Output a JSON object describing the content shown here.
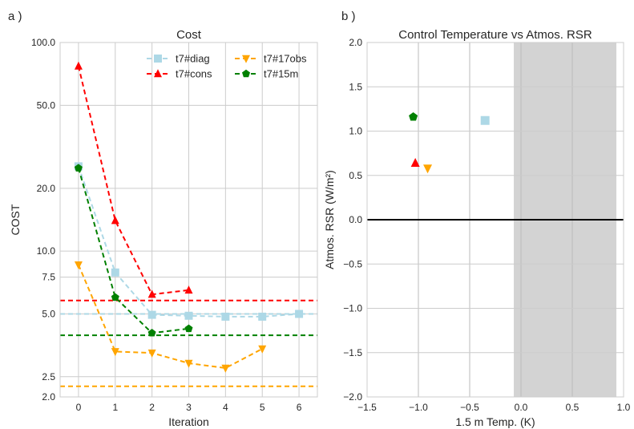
{
  "panels": {
    "a_label": "a )",
    "b_label": "b )"
  },
  "chart_data": [
    {
      "type": "line",
      "title": "Cost",
      "xlabel": "Iteration",
      "ylabel": "COST",
      "yscale": "log",
      "xlim": [
        -0.5,
        6.5
      ],
      "ylim": [
        2.0,
        100.0
      ],
      "xticks": [
        0,
        1,
        2,
        3,
        4,
        5,
        6
      ],
      "xtick_labels": [
        "0",
        "1",
        "2",
        "3",
        "4",
        "5",
        "6"
      ],
      "yticks": [
        2.0,
        2.5,
        5.0,
        7.5,
        10.0,
        20.0,
        50.0,
        100.0
      ],
      "ytick_labels": [
        "2.0",
        "2.5",
        "5.0",
        "7.5",
        "10.0",
        "20.0",
        "50.0",
        "100.0"
      ],
      "grid": true,
      "legend_position": "top-right",
      "series": [
        {
          "name": "t7#diag",
          "color": "#add8e6",
          "marker": "square",
          "x": [
            0,
            1,
            2,
            3,
            4,
            5,
            6
          ],
          "y": [
            25.5,
            7.9,
            4.95,
            4.9,
            4.85,
            4.85,
            5.0
          ],
          "hline": 5.0
        },
        {
          "name": "t7#cons",
          "color": "#ff0000",
          "marker": "triangle-up",
          "x": [
            0,
            1,
            2,
            3
          ],
          "y": [
            77,
            14,
            6.2,
            6.5
          ],
          "hline": 5.8
        },
        {
          "name": "t7#17obs",
          "color": "#ffa500",
          "marker": "triangle-down",
          "x": [
            0,
            1,
            2,
            3,
            4,
            5
          ],
          "y": [
            8.6,
            3.3,
            3.25,
            2.9,
            2.75,
            3.4
          ],
          "hline": 2.25
        },
        {
          "name": "t7#15m",
          "color": "#008000",
          "marker": "pentagon",
          "x": [
            0,
            1,
            2,
            3
          ],
          "y": [
            25,
            6.0,
            4.05,
            4.25
          ],
          "hline": 3.95
        }
      ]
    },
    {
      "type": "scatter",
      "title": "Control Temperature vs Atmos. RSR",
      "xlabel": "1.5 m Temp. (K)",
      "ylabel": "Atmos. RSR (W/m²)",
      "xlim": [
        -1.5,
        1.0
      ],
      "ylim": [
        -2.0,
        2.0
      ],
      "xticks": [
        -1.5,
        -1.0,
        -0.5,
        0.0,
        0.5,
        1.0
      ],
      "xtick_labels": [
        "−1.5",
        "−1.0",
        "−0.5",
        "0.0",
        "0.5",
        "1.0"
      ],
      "yticks": [
        -2.0,
        -1.5,
        -1.0,
        -0.5,
        0.0,
        0.5,
        1.0,
        1.5,
        2.0
      ],
      "ytick_labels": [
        "−2.0",
        "−1.5",
        "−1.0",
        "−0.5",
        "0.0",
        "0.5",
        "1.0",
        "1.5",
        "2.0"
      ],
      "grid": true,
      "shaded_x_range": [
        -0.07,
        0.93
      ],
      "zero_line": 0.0,
      "points": [
        {
          "color": "#008000",
          "marker": "pentagon",
          "x": -1.05,
          "y": 1.16
        },
        {
          "color": "#add8e6",
          "marker": "square",
          "x": -0.35,
          "y": 1.12
        },
        {
          "color": "#ff0000",
          "marker": "triangle-up",
          "x": -1.03,
          "y": 0.64
        },
        {
          "color": "#ffa500",
          "marker": "triangle-down",
          "x": -0.91,
          "y": 0.58
        }
      ]
    }
  ]
}
